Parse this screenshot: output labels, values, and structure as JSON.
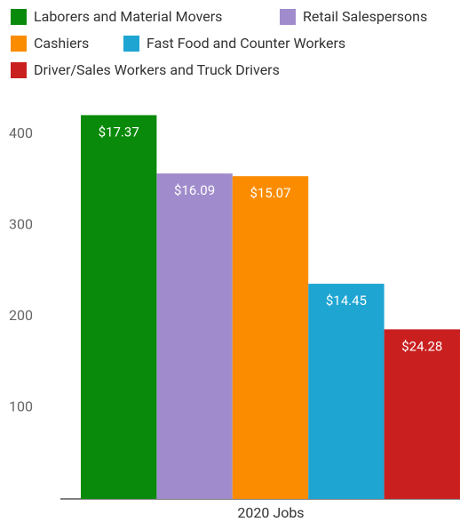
{
  "chart_data": {
    "type": "bar",
    "categories": [
      "2020 Jobs"
    ],
    "series": [
      {
        "name": "Laborers and Material Movers",
        "color": "#0a8a0a",
        "values": [
          421
        ],
        "label": "$17.37"
      },
      {
        "name": "Retail Salespersons",
        "color": "#a08ccc",
        "values": [
          357
        ],
        "label": "$16.09"
      },
      {
        "name": "Cashiers",
        "color": "#fb8c00",
        "values": [
          354
        ],
        "label": "$15.07"
      },
      {
        "name": "Fast Food and Counter Workers",
        "color": "#1ea5d2",
        "values": [
          236
        ],
        "label": "$14.45"
      },
      {
        "name": "Driver/Sales Workers and Truck Drivers",
        "color": "#c91f1f",
        "values": [
          186
        ],
        "label": "$24.28"
      }
    ],
    "ylim": [
      0,
      440
    ],
    "yticks": [
      100,
      200,
      300,
      400
    ],
    "grid": false,
    "legend": "top"
  }
}
